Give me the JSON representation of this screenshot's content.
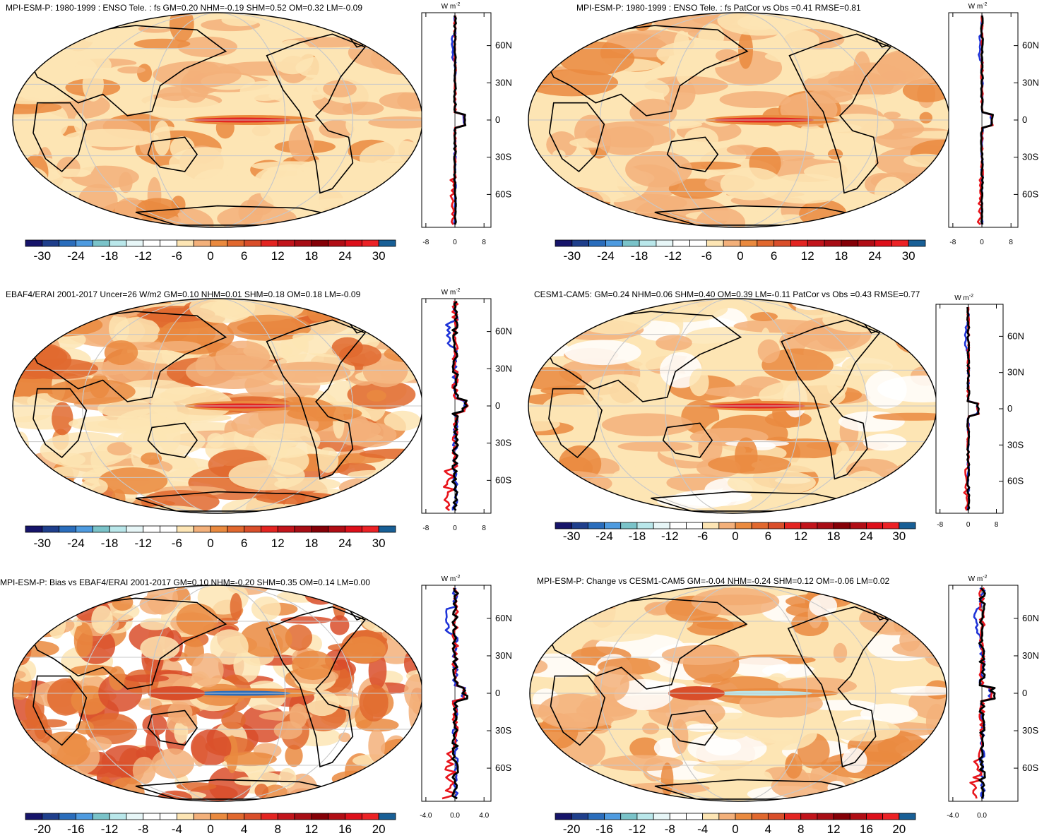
{
  "panels": [
    {
      "title": "MPI-ESM-P: 1980-1999 : ENSO Tele. : fs GM=0.20 NHM=-0.19 SHM=0.52 OM=0.32 LM=-0.09",
      "cbar_labels": [
        "-30",
        "-24",
        "-18",
        "-12",
        "-6",
        "0",
        "6",
        "12",
        "18",
        "24",
        "30"
      ],
      "zonal_ticks": [
        "-8",
        "0",
        "8"
      ],
      "unit": "W m",
      "unit_exp": "-2",
      "lat_labels": [
        "60N",
        "30N",
        "0",
        "30S",
        "60S"
      ],
      "style": "tele"
    },
    {
      "title": "MPI-ESM-P: 1980-1999 : ENSO Tele. : fs PatCor vs Obs =0.41 RMSE=0.81",
      "cbar_labels": [
        "-30",
        "-24",
        "-18",
        "-12",
        "-6",
        "0",
        "6",
        "12",
        "18",
        "24",
        "30"
      ],
      "zonal_ticks": [
        "-8",
        "0",
        "8"
      ],
      "unit": "W m",
      "unit_exp": "-2",
      "lat_labels": [
        "60N",
        "30N",
        "0",
        "30S",
        "60S"
      ],
      "style": "tele"
    },
    {
      "title": "EBAF4/ERAI 2001-2017 Uncer=26 W/m2 GM=0.10 NHM=0.01 SHM=0.18 OM=0.18 LM=-0.09",
      "cbar_labels": [
        "-30",
        "-24",
        "-18",
        "-12",
        "-6",
        "0",
        "6",
        "12",
        "18",
        "24",
        "30"
      ],
      "zonal_ticks": [
        "-8",
        "0",
        "8"
      ],
      "unit": "W m",
      "unit_exp": "-2",
      "lat_labels": [
        "60N",
        "30N",
        "0",
        "30S",
        "60S"
      ],
      "style": "obs"
    },
    {
      "title": "CESM1-CAM5: GM=0.24 NHM=0.06 SHM=0.40 OM=0.39 LM=-0.11 PatCor vs Obs =0.43 RMSE=0.77",
      "cbar_labels": [
        "-30",
        "-24",
        "-18",
        "-12",
        "-6",
        "0",
        "6",
        "12",
        "18",
        "24",
        "30"
      ],
      "zonal_ticks": [
        "-8",
        "0",
        "8"
      ],
      "unit": "W m",
      "unit_exp": "-2",
      "lat_labels": [
        "60N",
        "30N",
        "0",
        "30S",
        "60S"
      ],
      "style": "cesm"
    },
    {
      "title": "MPI-ESM-P: Bias vs EBAF4/ERAI 2001-2017 GM=0.10 NHM=-0.20 SHM=0.35 OM=0.14 LM=0.00",
      "cbar_labels": [
        "-20",
        "-16",
        "-12",
        "-8",
        "-4",
        "0",
        "4",
        "8",
        "12",
        "16",
        "20"
      ],
      "zonal_ticks": [
        "-4.0",
        "0.0",
        "4.0"
      ],
      "unit": "W m",
      "unit_exp": "-2",
      "lat_labels": [
        "60N",
        "30N",
        "0",
        "30S",
        "60S"
      ],
      "style": "bias"
    },
    {
      "title": "MPI-ESM-P: Change vs CESM1-CAM5 GM=-0.04 NHM=-0.24 SHM=0.12 OM=-0.06 LM=0.02",
      "cbar_labels": [
        "-20",
        "-16",
        "-12",
        "-8",
        "-4",
        "0",
        "4",
        "8",
        "12",
        "16",
        "20"
      ],
      "zonal_ticks": [
        "-4.0",
        "0.0"
      ],
      "unit": "W m",
      "unit_exp": "-2",
      "lat_labels": [
        "60N",
        "30N",
        "0",
        "30S",
        "60S"
      ],
      "style": "change"
    }
  ],
  "colorbar_colors": [
    "#16146a",
    "#1f3f8c",
    "#2a6dbc",
    "#4e9be0",
    "#7ac3c9",
    "#b9e7ea",
    "#e7f6f7",
    "#ffffff",
    "#ffffff",
    "#fde5b4",
    "#f3b07a",
    "#ea8a3f",
    "#e1682e",
    "#d94e2a",
    "#e32421",
    "#c2141b",
    "#a80d15",
    "#850007",
    "#b10d15",
    "#dd0f1a",
    "#ec2226",
    "#185f96"
  ],
  "series_colors": {
    "model": "#000000",
    "obs": "#e8141b",
    "other": "#1f34d8"
  }
}
